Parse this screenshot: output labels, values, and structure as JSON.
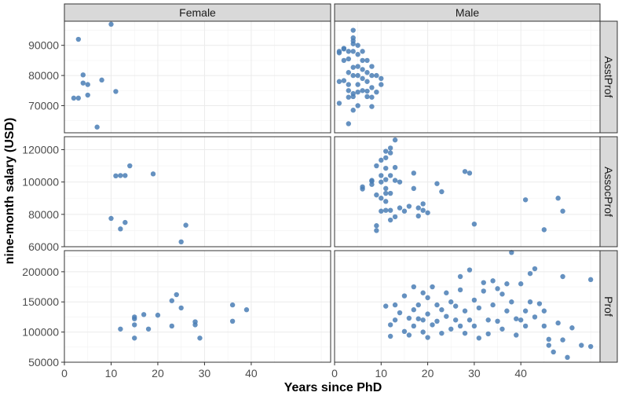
{
  "chart_data": {
    "type": "scatter",
    "xlabel": "Years since PhD",
    "ylabel": "nine-month salary (USD)",
    "xlim": [
      0,
      57
    ],
    "x_ticks": [
      0,
      10,
      20,
      30,
      40
    ],
    "grid": true,
    "point_color": "#4a7eb5",
    "columns": [
      "Female",
      "Male"
    ],
    "rows": [
      {
        "name": "AsstProf",
        "ylim": [
          61000,
          98000
        ],
        "y_ticks": [
          70000,
          80000,
          90000
        ]
      },
      {
        "name": "AssocProf",
        "ylim": [
          60000,
          128000
        ],
        "y_ticks": [
          60000,
          80000,
          100000,
          120000
        ]
      },
      {
        "name": "Prof",
        "ylim": [
          50000,
          235000
        ],
        "y_ticks": [
          50000,
          100000,
          150000,
          200000
        ]
      }
    ],
    "panels": [
      {
        "row": "AsstProf",
        "column": "Female",
        "points": [
          [
            2,
            72500
          ],
          [
            3,
            72500
          ],
          [
            3,
            92000
          ],
          [
            4,
            80200
          ],
          [
            4,
            77500
          ],
          [
            5,
            77000
          ],
          [
            5,
            73500
          ],
          [
            7,
            62900
          ],
          [
            8,
            78500
          ],
          [
            10,
            97000
          ],
          [
            11,
            74700
          ]
        ]
      },
      {
        "row": "AsstProf",
        "column": "Male",
        "points": [
          [
            1,
            88000
          ],
          [
            1,
            70800
          ],
          [
            1,
            78000
          ],
          [
            1,
            87500
          ],
          [
            2,
            89000
          ],
          [
            2,
            85000
          ],
          [
            2,
            78300
          ],
          [
            2,
            88800
          ],
          [
            3,
            64000
          ],
          [
            3,
            72800
          ],
          [
            3,
            75000
          ],
          [
            3,
            88000
          ],
          [
            3,
            85500
          ],
          [
            3,
            81000
          ],
          [
            3,
            77000
          ],
          [
            4,
            95000
          ],
          [
            4,
            92500
          ],
          [
            4,
            91500
          ],
          [
            4,
            90500
          ],
          [
            4,
            88000
          ],
          [
            4,
            82700
          ],
          [
            4,
            80000
          ],
          [
            4,
            74000
          ],
          [
            4,
            73000
          ],
          [
            4,
            68500
          ],
          [
            5,
            90000
          ],
          [
            5,
            87000
          ],
          [
            5,
            83000
          ],
          [
            5,
            80000
          ],
          [
            5,
            77000
          ],
          [
            5,
            74500
          ],
          [
            5,
            70000
          ],
          [
            6,
            88000
          ],
          [
            6,
            85000
          ],
          [
            6,
            82000
          ],
          [
            6,
            79000
          ],
          [
            6,
            75000
          ],
          [
            7,
            85000
          ],
          [
            7,
            81000
          ],
          [
            7,
            78000
          ],
          [
            7,
            74800
          ],
          [
            7,
            73000
          ],
          [
            8,
            83000
          ],
          [
            8,
            80000
          ],
          [
            8,
            76000
          ],
          [
            8,
            72800
          ],
          [
            8,
            69700
          ],
          [
            9,
            80000
          ],
          [
            9,
            74500
          ],
          [
            10,
            79000
          ],
          [
            10,
            77000
          ]
        ]
      },
      {
        "row": "AssocProf",
        "column": "Female",
        "points": [
          [
            10,
            77500
          ],
          [
            11,
            103800
          ],
          [
            12,
            71000
          ],
          [
            12,
            104000
          ],
          [
            13,
            75000
          ],
          [
            13,
            104000
          ],
          [
            14,
            110000
          ],
          [
            19,
            105000
          ],
          [
            25,
            63000
          ],
          [
            26,
            73300
          ]
        ]
      },
      {
        "row": "AssocProf",
        "column": "Male",
        "points": [
          [
            6,
            95700
          ],
          [
            6,
            97000
          ],
          [
            8,
            98500
          ],
          [
            8,
            100500
          ],
          [
            8,
            101000
          ],
          [
            9,
            70000
          ],
          [
            9,
            73000
          ],
          [
            9,
            92000
          ],
          [
            9,
            110000
          ],
          [
            10,
            90000
          ],
          [
            10,
            104000
          ],
          [
            10,
            82000
          ],
          [
            10,
            100000
          ],
          [
            10,
            113500
          ],
          [
            11,
            82500
          ],
          [
            11,
            93000
          ],
          [
            11,
            101500
          ],
          [
            11,
            96000
          ],
          [
            11,
            88000
          ],
          [
            11,
            115000
          ],
          [
            11,
            108500
          ],
          [
            11,
            119000
          ],
          [
            12,
            104000
          ],
          [
            12,
            82500
          ],
          [
            12,
            118000
          ],
          [
            12,
            76500
          ],
          [
            12,
            93000
          ],
          [
            12,
            121000
          ],
          [
            13,
            126000
          ],
          [
            13,
            101000
          ],
          [
            13,
            78500
          ],
          [
            13,
            109000
          ],
          [
            14,
            84000
          ],
          [
            14,
            100000
          ],
          [
            15,
            82000
          ],
          [
            16,
            85000
          ],
          [
            17,
            105500
          ],
          [
            17,
            96000
          ],
          [
            18,
            84000
          ],
          [
            18,
            79000
          ],
          [
            19,
            86500
          ],
          [
            19,
            82500
          ],
          [
            20,
            81000
          ],
          [
            22,
            99000
          ],
          [
            23,
            94000
          ],
          [
            28,
            106500
          ],
          [
            29,
            105500
          ],
          [
            30,
            74000
          ],
          [
            41,
            89000
          ],
          [
            45,
            70500
          ],
          [
            48,
            90000
          ],
          [
            49,
            82000
          ]
        ]
      },
      {
        "row": "Prof",
        "column": "Female",
        "points": [
          [
            12,
            105000
          ],
          [
            15,
            90000
          ],
          [
            15,
            122000
          ],
          [
            15,
            112000
          ],
          [
            15,
            125000
          ],
          [
            17,
            129000
          ],
          [
            18,
            105000
          ],
          [
            20,
            128000
          ],
          [
            23,
            152000
          ],
          [
            23,
            110000
          ],
          [
            24,
            162000
          ],
          [
            25,
            140000
          ],
          [
            28,
            112000
          ],
          [
            28,
            117000
          ],
          [
            29,
            90000
          ],
          [
            36,
            145000
          ],
          [
            36,
            118000
          ],
          [
            39,
            137000
          ]
        ]
      },
      {
        "row": "Prof",
        "column": "Male",
        "points": [
          [
            11,
            143000
          ],
          [
            12,
            112000
          ],
          [
            12,
            93000
          ],
          [
            13,
            145000
          ],
          [
            13,
            120000
          ],
          [
            14,
            132000
          ],
          [
            15,
            160000
          ],
          [
            15,
            101000
          ],
          [
            16,
            123000
          ],
          [
            16,
            95000
          ],
          [
            17,
            175000
          ],
          [
            17,
            110000
          ],
          [
            17,
            137000
          ],
          [
            18,
            145000
          ],
          [
            18,
            122000
          ],
          [
            19,
            165000
          ],
          [
            19,
            120000
          ],
          [
            19,
            100000
          ],
          [
            20,
            91000
          ],
          [
            20,
            130000
          ],
          [
            20,
            157000
          ],
          [
            21,
            175000
          ],
          [
            21,
            112000
          ],
          [
            22,
            145000
          ],
          [
            22,
            118000
          ],
          [
            23,
            137000
          ],
          [
            23,
            98000
          ],
          [
            24,
            165000
          ],
          [
            24,
            126000
          ],
          [
            25,
            105000
          ],
          [
            25,
            150000
          ],
          [
            26,
            143000
          ],
          [
            26,
            120000
          ],
          [
            27,
            192000
          ],
          [
            27,
            170000
          ],
          [
            27,
            110000
          ],
          [
            28,
            135000
          ],
          [
            28,
            98000
          ],
          [
            29,
            203000
          ],
          [
            29,
            120000
          ],
          [
            30,
            153000
          ],
          [
            30,
            110000
          ],
          [
            31,
            140000
          ],
          [
            31,
            90000
          ],
          [
            32,
            182000
          ],
          [
            32,
            168000
          ],
          [
            33,
            120000
          ],
          [
            33,
            97000
          ],
          [
            34,
            185000
          ],
          [
            34,
            145000
          ],
          [
            35,
            172000
          ],
          [
            35,
            118000
          ],
          [
            36,
            163000
          ],
          [
            36,
            105000
          ],
          [
            37,
            180000
          ],
          [
            37,
            135000
          ],
          [
            38,
            232000
          ],
          [
            38,
            150000
          ],
          [
            39,
            122000
          ],
          [
            39,
            95000
          ],
          [
            40,
            180000
          ],
          [
            40,
            120000
          ],
          [
            41,
            135000
          ],
          [
            41,
            110000
          ],
          [
            42,
            197000
          ],
          [
            42,
            150000
          ],
          [
            43,
            205000
          ],
          [
            43,
            125000
          ],
          [
            44,
            147000
          ],
          [
            45,
            135000
          ],
          [
            45,
            110000
          ],
          [
            46,
            88000
          ],
          [
            46,
            78000
          ],
          [
            47,
            67000
          ],
          [
            48,
            115000
          ],
          [
            49,
            192000
          ],
          [
            49,
            87000
          ],
          [
            50,
            58000
          ],
          [
            51,
            107000
          ],
          [
            53,
            78000
          ],
          [
            55,
            187000
          ],
          [
            55,
            76000
          ]
        ]
      }
    ]
  }
}
